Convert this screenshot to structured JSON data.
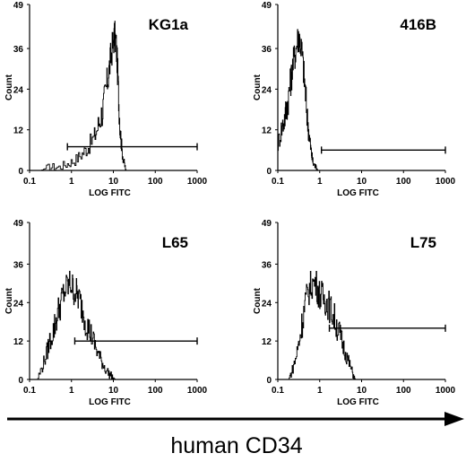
{
  "chart_data": [
    {
      "type": "histogram",
      "title": "KG1a",
      "xlabel": "LOG FITC",
      "ylabel": "Count",
      "x_scale": "log",
      "xlim": [
        0.1,
        1000
      ],
      "ylim": [
        0,
        49
      ],
      "x_ticks": [
        "0.1",
        "1",
        "10",
        "100",
        "1000"
      ],
      "y_ticks": [
        "0",
        "12",
        "24",
        "36",
        "49"
      ],
      "grid": false,
      "gate": {
        "start": 0.8,
        "end": 1000,
        "level": 7
      },
      "series": [
        {
          "x": [
            0.18,
            0.3,
            0.5,
            0.8,
            1.2,
            1.8,
            2.5,
            3.5,
            4.5,
            5.5,
            6.5,
            7.5,
            8.5,
            9.5,
            10.5,
            11.5,
            12.5,
            13.5,
            14.5,
            16,
            18,
            20
          ],
          "y": [
            0,
            1,
            1,
            2,
            3,
            5,
            7,
            10,
            14,
            18,
            23,
            28,
            33,
            37,
            40,
            38,
            30,
            20,
            12,
            6,
            2,
            0
          ]
        }
      ]
    },
    {
      "type": "histogram",
      "title": "416B",
      "xlabel": "LOG FITC",
      "ylabel": "Count",
      "x_scale": "log",
      "xlim": [
        0.1,
        1000
      ],
      "ylim": [
        0,
        49
      ],
      "x_ticks": [
        "0.1",
        "1",
        "10",
        "100",
        "1000"
      ],
      "y_ticks": [
        "0",
        "12",
        "24",
        "36",
        "49"
      ],
      "grid": false,
      "gate": {
        "start": 1.1,
        "end": 1000,
        "level": 6
      },
      "series": [
        {
          "x": [
            0.1,
            0.12,
            0.14,
            0.16,
            0.18,
            0.2,
            0.22,
            0.25,
            0.28,
            0.31,
            0.34,
            0.38,
            0.42,
            0.46,
            0.5,
            0.55,
            0.6,
            0.65,
            0.7,
            0.8,
            0.9
          ],
          "y": [
            8,
            12,
            15,
            18,
            22,
            26,
            30,
            34,
            37,
            40,
            38,
            34,
            28,
            22,
            16,
            11,
            7,
            4,
            2,
            1,
            0
          ]
        }
      ]
    },
    {
      "type": "histogram",
      "title": "L65",
      "xlabel": "LOG FITC",
      "ylabel": "Count",
      "x_scale": "log",
      "xlim": [
        0.1,
        1000
      ],
      "ylim": [
        0,
        49
      ],
      "x_ticks": [
        "0.1",
        "1",
        "10",
        "100",
        "1000"
      ],
      "y_ticks": [
        "0",
        "12",
        "24",
        "36",
        "49"
      ],
      "grid": false,
      "gate": {
        "start": 1.2,
        "end": 1000,
        "level": 12
      },
      "series": [
        {
          "x": [
            0.15,
            0.2,
            0.25,
            0.3,
            0.38,
            0.45,
            0.55,
            0.65,
            0.8,
            0.95,
            1.1,
            1.3,
            1.5,
            1.8,
            2.2,
            2.7,
            3.3,
            4,
            5,
            6,
            7.5,
            9,
            11,
            13
          ],
          "y": [
            0,
            4,
            8,
            12,
            16,
            20,
            24,
            27,
            29,
            30,
            28,
            27,
            25,
            22,
            18,
            15,
            12,
            9,
            6,
            4,
            2,
            1,
            0,
            0
          ]
        }
      ]
    },
    {
      "type": "histogram",
      "title": "L75",
      "xlabel": "LOG FITC",
      "ylabel": "Count",
      "x_scale": "log",
      "xlim": [
        0.1,
        1000
      ],
      "ylim": [
        0,
        49
      ],
      "x_ticks": [
        "0.1",
        "1",
        "10",
        "100",
        "1000"
      ],
      "y_ticks": [
        "0",
        "12",
        "24",
        "36",
        "49"
      ],
      "grid": false,
      "gate": {
        "start": 1.7,
        "end": 1000,
        "level": 16
      },
      "series": [
        {
          "x": [
            0.18,
            0.22,
            0.27,
            0.32,
            0.38,
            0.45,
            0.55,
            0.65,
            0.8,
            0.95,
            1.1,
            1.3,
            1.5,
            1.8,
            2.1,
            2.5,
            3,
            3.5,
            4.2,
            5,
            6,
            7
          ],
          "y": [
            0,
            3,
            7,
            12,
            18,
            24,
            28,
            30,
            30,
            27,
            26,
            25,
            24,
            22,
            20,
            17,
            14,
            11,
            8,
            5,
            2,
            0
          ]
        }
      ]
    }
  ],
  "footer_label": "human CD34"
}
